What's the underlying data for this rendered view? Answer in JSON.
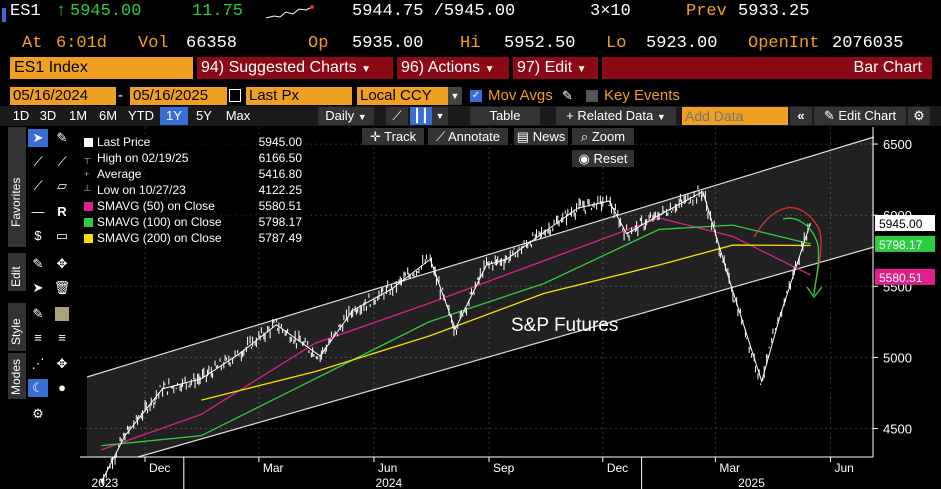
{
  "quote": {
    "ticker": "ES1",
    "last": "5945.00",
    "change": "11.75",
    "bid_ask": "5944.75 /5945.00",
    "size": "3×10",
    "prev_label": "Prev",
    "prev": "5933.25",
    "at_label": "At",
    "at": "6:01d",
    "vol_label": "Vol",
    "vol": "66358",
    "op_label": "Op",
    "op": "5935.00",
    "hi_label": "Hi",
    "hi": "5952.50",
    "lo_label": "Lo",
    "lo": "5923.00",
    "oi_label": "OpenInt",
    "oi": "2076035"
  },
  "menubar": {
    "security": "ES1 Index",
    "m94": "94) Suggested Charts",
    "m96": "96) Actions",
    "m97": "97) Edit",
    "title": "Bar Chart"
  },
  "toolbar": {
    "start_date": "05/16/2024",
    "end_date": "05/16/2025",
    "field": "Last Px",
    "currency": "Local CCY",
    "mov_avgs": "Mov Avgs",
    "key_events": "Key Events",
    "periods": [
      "1D",
      "3D",
      "1M",
      "6M",
      "YTD",
      "1Y",
      "5Y",
      "Max"
    ],
    "selected_period": "1Y",
    "frequency": "Daily",
    "table": "Table",
    "related": "+ Related Data",
    "add_data_placeholder": "Add Data",
    "edit_chart": "Edit Chart"
  },
  "chart_tools": {
    "track": "Track",
    "annotate": "Annotate",
    "news": "News",
    "zoom": "Zoom",
    "reset": "Reset"
  },
  "side_tabs": [
    "Favorites",
    "Edit",
    "Style",
    "Modes"
  ],
  "legend": [
    {
      "label": "Last Price",
      "value": "5945.00",
      "color": "#ffffff"
    },
    {
      "label": "High on 02/19/25",
      "value": "6166.50",
      "color": "#ffffff"
    },
    {
      "label": "Average",
      "value": "5416.80",
      "color": "#ffffff"
    },
    {
      "label": "Low on 10/27/23",
      "value": "4122.25",
      "color": "#ffffff"
    },
    {
      "label": "SMAVG (50)  on Close",
      "value": "5580.51",
      "color": "#e0208a"
    },
    {
      "label": "SMAVG (100)  on Close",
      "value": "5798.17",
      "color": "#2ecc40"
    },
    {
      "label": "SMAVG (200)  on Close",
      "value": "5787.49",
      "color": "#f5e000"
    }
  ],
  "chart_data": {
    "type": "line",
    "annotation": "S&P Futures",
    "y_ticks": [
      "6500",
      "6000",
      "5500",
      "5000",
      "4500"
    ],
    "x_months": [
      "Dec",
      "Mar",
      "Jun",
      "Sep",
      "Dec",
      "Mar",
      "Jun"
    ],
    "x_years": [
      "2023",
      "2024",
      "2025"
    ],
    "price_tags": [
      {
        "value": "5945.00",
        "color": "#ffffff"
      },
      {
        "value": "5798.17",
        "color": "#2ecc40"
      },
      {
        "value": "5580.51",
        "color": "#e0208a"
      }
    ],
    "series": [
      {
        "name": "Last Price",
        "color": "#ffffff",
        "x": [
          "2023-10-27",
          "2023-11-15",
          "2023-12-15",
          "2024-01-15",
          "2024-02-15",
          "2024-03-15",
          "2024-04-19",
          "2024-05-15",
          "2024-06-15",
          "2024-07-16",
          "2024-08-05",
          "2024-08-30",
          "2024-09-15",
          "2024-10-15",
          "2024-11-11",
          "2024-12-06",
          "2024-12-20",
          "2025-01-15",
          "2025-02-19",
          "2025-03-13",
          "2025-04-07",
          "2025-04-22",
          "2025-05-16"
        ],
        "y": [
          4122,
          4450,
          4780,
          4850,
          5030,
          5230,
          5010,
          5330,
          5480,
          5690,
          5200,
          5650,
          5690,
          5880,
          6050,
          6100,
          5870,
          6000,
          6166,
          5520,
          4832,
          5300,
          5945
        ]
      },
      {
        "name": "SMAVG (50)",
        "color": "#e0208a",
        "x": [
          "2023-10-27",
          "2024-01-15",
          "2024-04-15",
          "2024-07-15",
          "2024-10-15",
          "2025-01-15",
          "2025-03-15",
          "2025-05-16"
        ],
        "y": [
          4350,
          4600,
          5100,
          5380,
          5680,
          5980,
          5850,
          5580
        ]
      },
      {
        "name": "SMAVG (100)",
        "color": "#2ecc40",
        "x": [
          "2023-10-27",
          "2024-01-15",
          "2024-04-15",
          "2024-07-15",
          "2024-10-15",
          "2025-01-15",
          "2025-03-15",
          "2025-05-16"
        ],
        "y": [
          4380,
          4450,
          4850,
          5250,
          5520,
          5900,
          5930,
          5798
        ]
      },
      {
        "name": "SMAVG (200)",
        "color": "#f5e000",
        "x": [
          "2024-01-15",
          "2024-04-15",
          "2024-07-15",
          "2024-10-15",
          "2025-01-15",
          "2025-03-15",
          "2025-05-16"
        ],
        "y": [
          4700,
          4900,
          5150,
          5450,
          5650,
          5790,
          5787
        ]
      }
    ],
    "ylim": [
      4300,
      6620
    ]
  }
}
